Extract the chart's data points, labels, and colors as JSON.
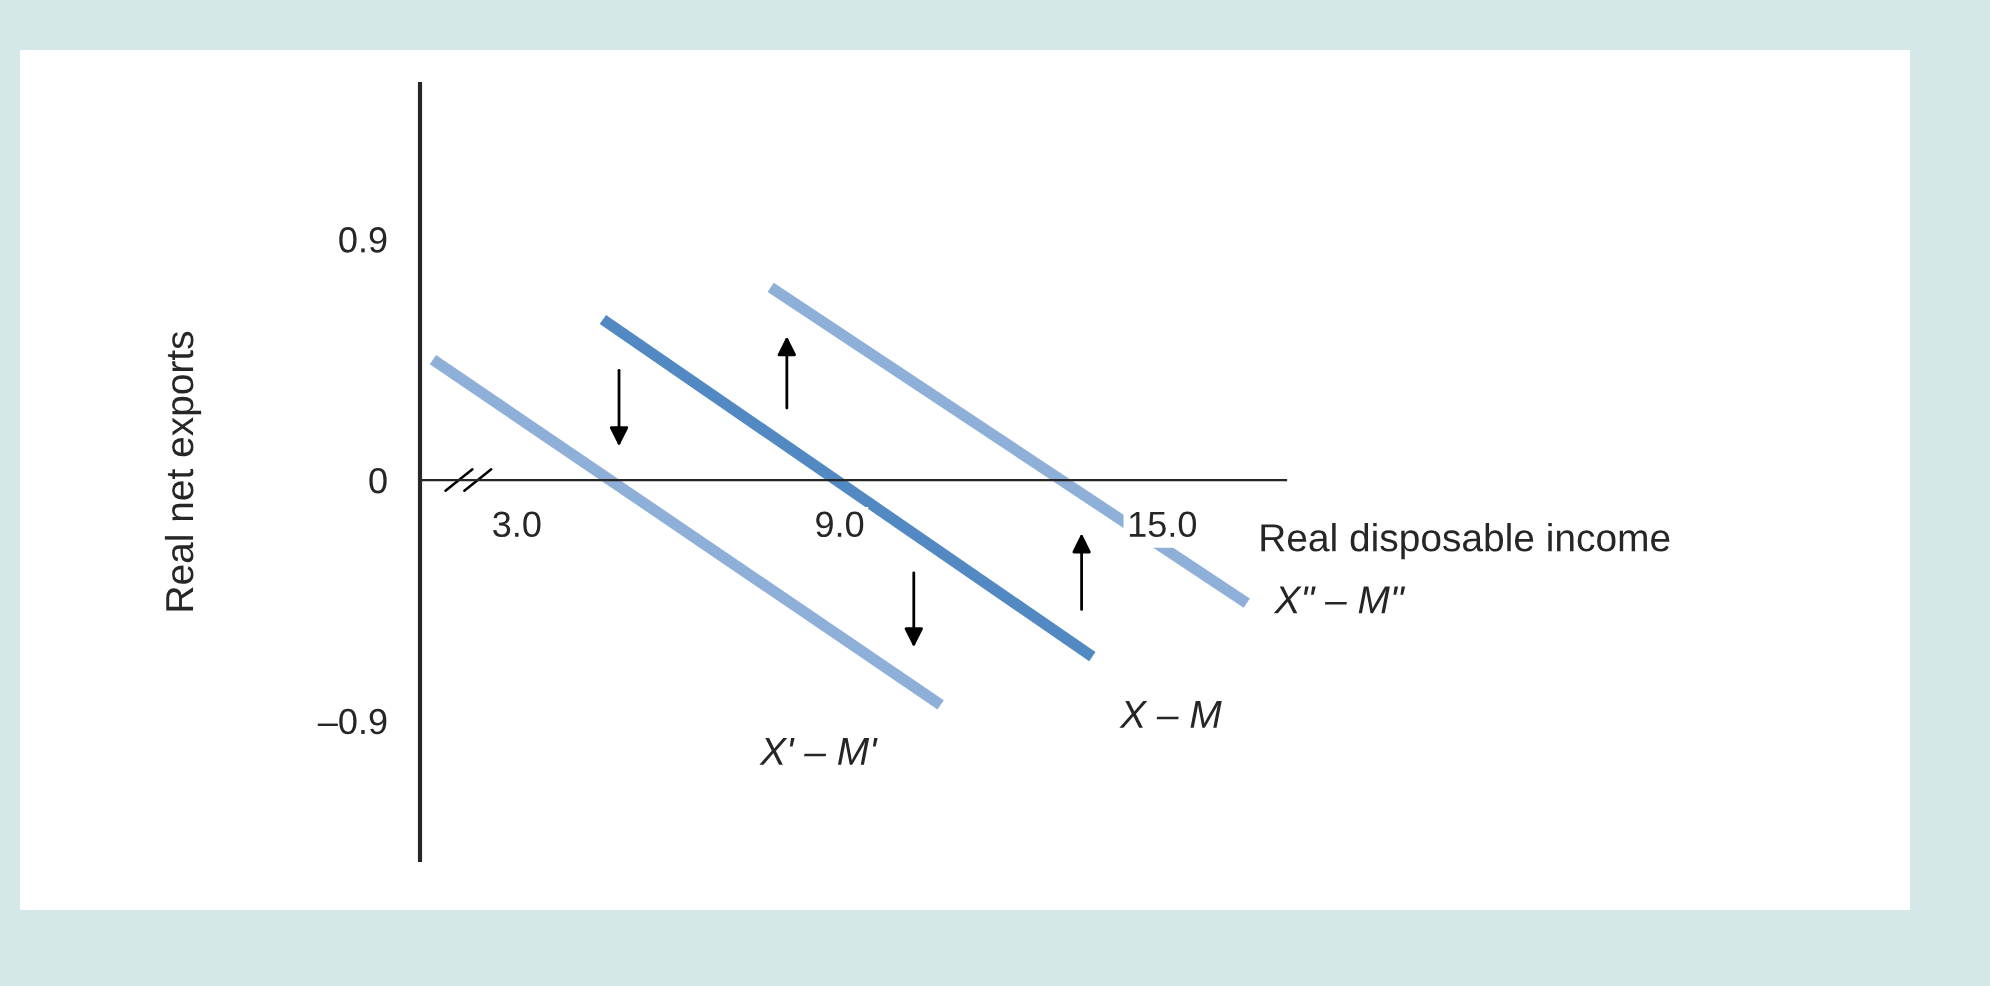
{
  "chart_data": {
    "type": "line",
    "xlabel": "Real disposable income",
    "ylabel": "Real net exports",
    "xlim": [
      1.2,
      17.3
    ],
    "ylim": [
      -1.42,
      1.48
    ],
    "xticks": [
      {
        "value": 3,
        "label": "3.0"
      },
      {
        "value": 9,
        "label": "9.0"
      },
      {
        "value": 15,
        "label": "15.0"
      }
    ],
    "yticks": [
      {
        "value": -0.9,
        "label": "–0.9"
      },
      0,
      0.9
    ],
    "grid": false,
    "legend": false,
    "marker": "none",
    "line_style": "solid",
    "series": [
      {
        "name": "X' – M'",
        "color": "#8eb0d8",
        "x": [
          1.44,
          10.88
        ],
        "values": [
          0.45,
          -0.84
        ]
      },
      {
        "name": "X – M",
        "color": "#5289c2",
        "x": [
          4.6,
          13.7
        ],
        "values": [
          0.6,
          -0.66
        ]
      },
      {
        "name": "X\" – M\"",
        "color": "#8eb0d8",
        "x": [
          7.72,
          16.57
        ],
        "values": [
          0.72,
          -0.46
        ]
      }
    ]
  }
}
